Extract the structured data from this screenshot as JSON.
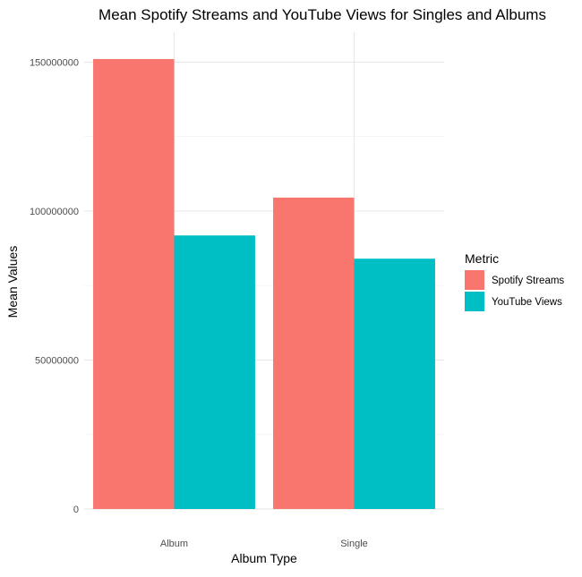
{
  "chart_data": {
    "type": "bar",
    "title": "Mean Spotify Streams and YouTube Views for Singles and Albums",
    "xlabel": "Album Type",
    "ylabel": "Mean Values",
    "categories": [
      "Album",
      "Single"
    ],
    "series": [
      {
        "name": "Spotify Streams",
        "values": [
          151000000,
          104500000
        ],
        "color": "#F8766D"
      },
      {
        "name": "YouTube Views",
        "values": [
          91800000,
          84000000
        ],
        "color": "#00BFC4"
      }
    ],
    "ylim": [
      0,
      160000000
    ],
    "y_ticks": [
      0,
      50000000,
      100000000,
      150000000
    ],
    "y_tick_labels": [
      "0",
      "50000000",
      "100000000",
      "150000000"
    ],
    "grid": true,
    "legend": {
      "title": "Metric",
      "position": "right"
    }
  }
}
